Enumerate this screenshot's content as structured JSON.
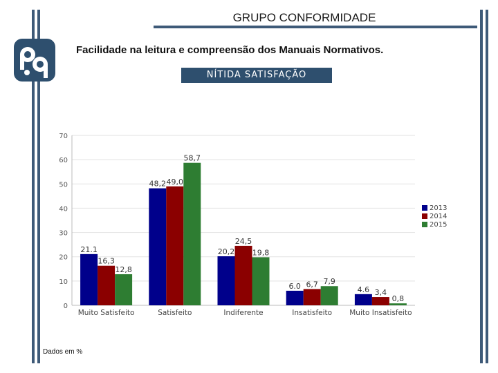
{
  "header": {
    "title": "GRUPO CONFORMIDADE",
    "subtitle": "Facilidade na leitura e compreensão dos Manuais Normativos.",
    "badge": "NÍTIDA SATISFAÇÃO"
  },
  "footer": {
    "note": "Dados em %"
  },
  "colors": {
    "accent": "#3e5a78",
    "badge_bg": "#2e4f6e"
  },
  "chart_data": {
    "type": "bar",
    "title": "",
    "xlabel": "",
    "ylabel": "",
    "ylim": [
      0,
      70
    ],
    "yticks": [
      0,
      10,
      20,
      30,
      40,
      50,
      60,
      70
    ],
    "grid": true,
    "legend_position": "right",
    "categories": [
      "Muito Satisfeito",
      "Satisfeito",
      "Indiferente",
      "Insatisfeito",
      "Muito Insatisfeito"
    ],
    "series": [
      {
        "name": "2013",
        "color": "#00008b",
        "values": [
          21.1,
          48.2,
          20.2,
          6.0,
          4.6
        ],
        "labels": [
          "21.1",
          "48,2",
          "20,2",
          "6.0",
          "4.6"
        ]
      },
      {
        "name": "2014",
        "color": "#8b0000",
        "values": [
          16.3,
          49.0,
          24.5,
          6.7,
          3.4
        ],
        "labels": [
          "16,3",
          "49,0",
          "24,5",
          "6,7",
          "3,4"
        ]
      },
      {
        "name": "2015",
        "color": "#2e7d32",
        "values": [
          12.8,
          58.7,
          19.8,
          7.9,
          0.8
        ],
        "labels": [
          "12,8",
          "58,7",
          "19,8",
          "7,9",
          "0,8"
        ]
      }
    ]
  }
}
